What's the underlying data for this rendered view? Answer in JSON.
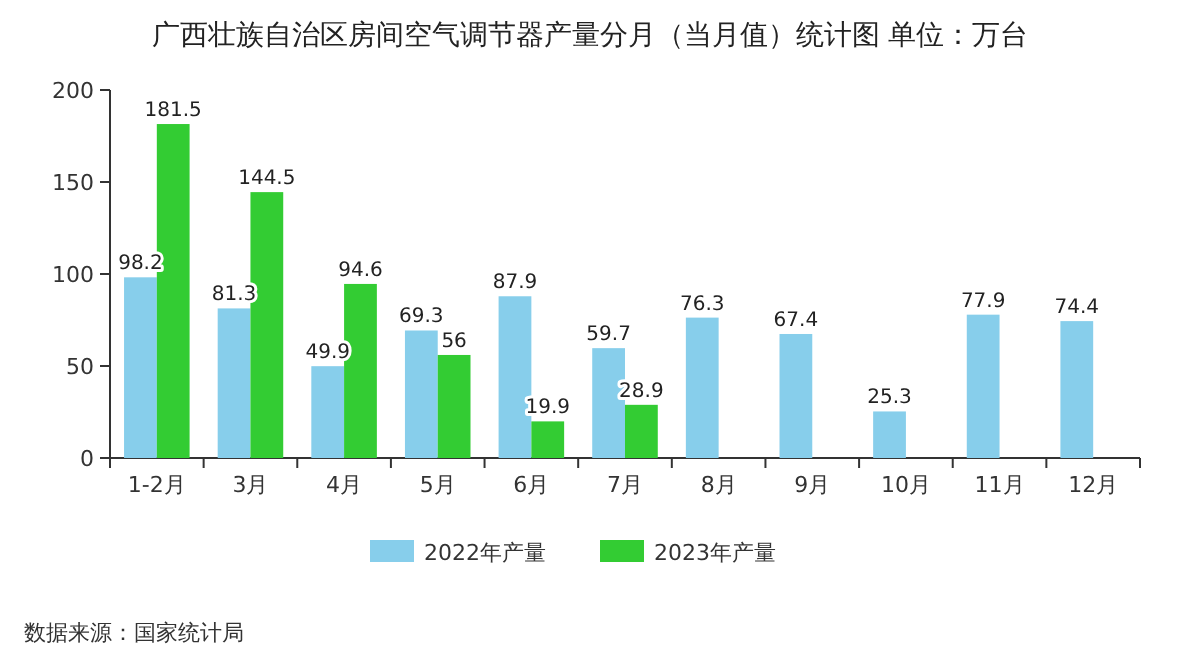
{
  "chart_data": {
    "type": "bar",
    "title": "广西壮族自治区房间空气调节器产量分月（当月值）统计图 单位：万台",
    "categories": [
      "1-2月",
      "3月",
      "4月",
      "5月",
      "6月",
      "7月",
      "8月",
      "9月",
      "10月",
      "11月",
      "12月"
    ],
    "series": [
      {
        "name": "2022年产量",
        "color": "#87ceeb",
        "values": [
          98.2,
          81.3,
          49.9,
          69.3,
          87.9,
          59.7,
          76.3,
          67.4,
          25.3,
          77.9,
          74.4
        ]
      },
      {
        "name": "2023年产量",
        "color": "#33cc33",
        "values": [
          181.5,
          144.5,
          94.6,
          56,
          19.9,
          28.9,
          null,
          null,
          null,
          null,
          null
        ]
      }
    ],
    "ylim": [
      0,
      200
    ],
    "yticks": [
      0,
      50,
      100,
      150,
      200
    ],
    "data_labels": true,
    "legend": "bottom",
    "annotations": [
      "数据来源：国家统计局"
    ]
  }
}
